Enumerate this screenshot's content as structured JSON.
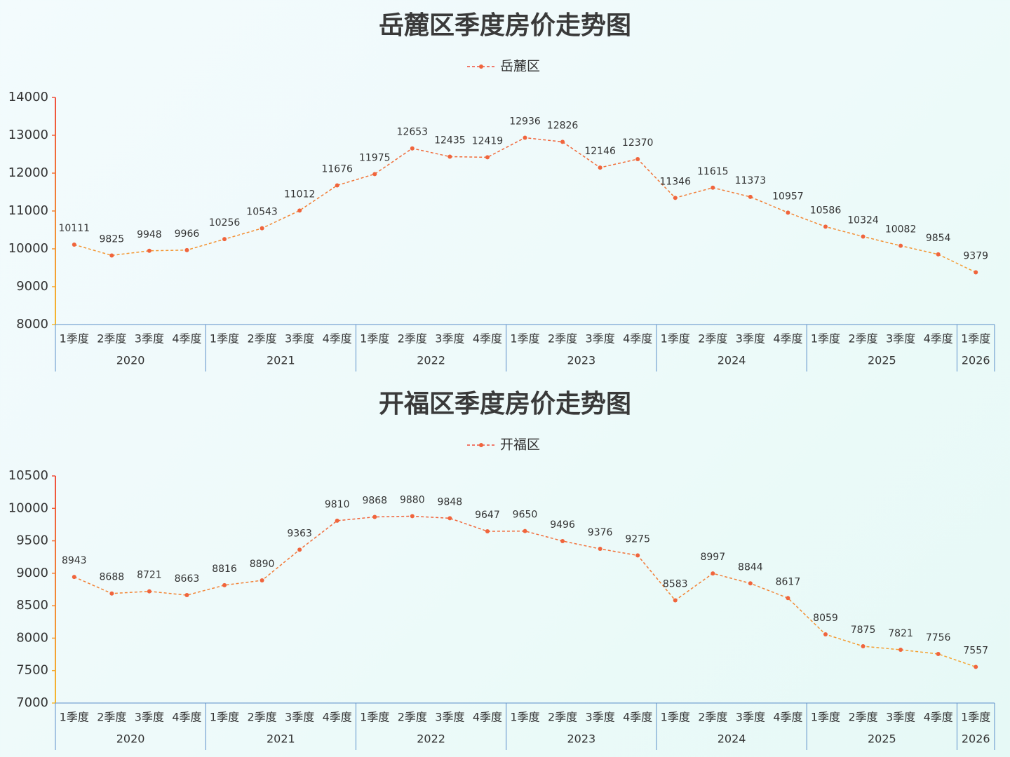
{
  "chart_data": [
    {
      "type": "line",
      "title": "岳麓区季度房价走势图",
      "groups": [
        {
          "label": "2020",
          "categories": [
            "1季度",
            "2季度",
            "3季度",
            "4季度"
          ]
        },
        {
          "label": "2021",
          "categories": [
            "1季度",
            "2季度",
            "3季度",
            "4季度"
          ]
        },
        {
          "label": "2022",
          "categories": [
            "1季度",
            "2季度",
            "3季度",
            "4季度"
          ]
        },
        {
          "label": "2023",
          "categories": [
            "1季度",
            "2季度",
            "3季度",
            "4季度"
          ]
        },
        {
          "label": "2024",
          "categories": [
            "1季度",
            "2季度",
            "3季度",
            "4季度"
          ]
        },
        {
          "label": "2025",
          "categories": [
            "1季度",
            "2季度",
            "3季度",
            "4季度"
          ]
        },
        {
          "label": "2026",
          "categories": [
            "1季度"
          ]
        }
      ],
      "series": [
        {
          "name": "岳麓区",
          "color": "#f0643c",
          "gradient": [
            "#f5b82e",
            "#f0503c"
          ],
          "values": [
            10111,
            9825,
            9948,
            9966,
            10256,
            10543,
            11012,
            11676,
            11975,
            12653,
            12435,
            12419,
            12936,
            12826,
            12146,
            12370,
            11346,
            11615,
            11373,
            10957,
            10586,
            10324,
            10082,
            9854,
            9379
          ]
        }
      ],
      "ylim": [
        8000,
        14000
      ],
      "yticks": [
        8000,
        9000,
        10000,
        11000,
        12000,
        13000,
        14000
      ],
      "grid": false
    },
    {
      "type": "line",
      "title": "开福区季度房价走势图",
      "groups": [
        {
          "label": "2020",
          "categories": [
            "1季度",
            "2季度",
            "3季度",
            "4季度"
          ]
        },
        {
          "label": "2021",
          "categories": [
            "1季度",
            "2季度",
            "3季度",
            "4季度"
          ]
        },
        {
          "label": "2022",
          "categories": [
            "1季度",
            "2季度",
            "3季度",
            "4季度"
          ]
        },
        {
          "label": "2023",
          "categories": [
            "1季度",
            "2季度",
            "3季度",
            "4季度"
          ]
        },
        {
          "label": "2024",
          "categories": [
            "1季度",
            "2季度",
            "3季度",
            "4季度"
          ]
        },
        {
          "label": "2025",
          "categories": [
            "1季度",
            "2季度",
            "3季度",
            "4季度"
          ]
        },
        {
          "label": "2026",
          "categories": [
            "1季度"
          ]
        }
      ],
      "series": [
        {
          "name": "开福区",
          "color": "#f0643c",
          "gradient": [
            "#f5b82e",
            "#f0503c"
          ],
          "values": [
            8943,
            8688,
            8721,
            8663,
            8816,
            8890,
            9363,
            9810,
            9868,
            9880,
            9848,
            9647,
            9650,
            9496,
            9376,
            9275,
            8583,
            8997,
            8844,
            8617,
            8059,
            7875,
            7821,
            7756,
            7557
          ]
        }
      ],
      "ylim": [
        7000,
        10500
      ],
      "yticks": [
        7000,
        7500,
        8000,
        8500,
        9000,
        9500,
        10000,
        10500
      ],
      "grid": false
    }
  ]
}
